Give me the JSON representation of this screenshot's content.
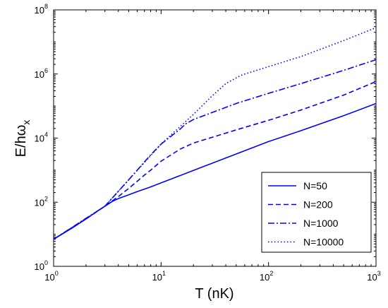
{
  "chart_data": {
    "type": "line",
    "xlabel": "T (nK)",
    "ylabel_main": "E/hω",
    "ylabel_sub": "x",
    "x_scale": "log",
    "y_scale": "log",
    "xlim": [
      1,
      1000
    ],
    "ylim": [
      1,
      100000000
    ],
    "x_ticks": [
      {
        "base": "10",
        "exp": "0",
        "value": 1
      },
      {
        "base": "10",
        "exp": "1",
        "value": 10
      },
      {
        "base": "10",
        "exp": "2",
        "value": 100
      },
      {
        "base": "10",
        "exp": "3",
        "value": 1000
      }
    ],
    "y_ticks": [
      {
        "base": "10",
        "exp": "0",
        "value": 1
      },
      {
        "base": "10",
        "exp": "2",
        "value": 100
      },
      {
        "base": "10",
        "exp": "4",
        "value": 10000
      },
      {
        "base": "10",
        "exp": "6",
        "value": 1000000
      },
      {
        "base": "10",
        "exp": "8",
        "value": 100000000
      }
    ],
    "grid": false,
    "legend_position": "bottom-right",
    "line_color": "#0000ff",
    "series": [
      {
        "name": "N=50",
        "style": "solid",
        "x": [
          1,
          1.5,
          2,
          2.5,
          3,
          3.5,
          4,
          5,
          6,
          8,
          10,
          20,
          50,
          100,
          200,
          500,
          1000
        ],
        "y": [
          7,
          16,
          30,
          50,
          75,
          105,
          130,
          170,
          215,
          300,
          400,
          980,
          3200,
          7800,
          17000,
          50000,
          120000
        ]
      },
      {
        "name": "N=200",
        "style": "dashed",
        "x": [
          1,
          2,
          3,
          4,
          5,
          6,
          7,
          8,
          10,
          15,
          20,
          50,
          100,
          200,
          500,
          1000
        ],
        "y": [
          7,
          30,
          75,
          150,
          270,
          450,
          700,
          1000,
          1900,
          4500,
          7000,
          18000,
          36000,
          75000,
          220000,
          580000
        ]
      },
      {
        "name": "N=1000",
        "style": "dashdot",
        "x": [
          1,
          3,
          5,
          8,
          10,
          15,
          17,
          20,
          50,
          100,
          200,
          500,
          1000
        ],
        "y": [
          7,
          75,
          500,
          3000,
          6500,
          19000,
          28000,
          38000,
          120000,
          250000,
          500000,
          1300000,
          2800000
        ]
      },
      {
        "name": "N=10000",
        "style": "dotted",
        "x": [
          1,
          3,
          5,
          10,
          20,
          30,
          40,
          55,
          60,
          100,
          200,
          500,
          1000
        ],
        "y": [
          7,
          75,
          500,
          6500,
          55000,
          210000,
          500000,
          900000,
          1000000,
          1700000,
          3500000,
          11000000,
          28000000
        ]
      }
    ]
  }
}
